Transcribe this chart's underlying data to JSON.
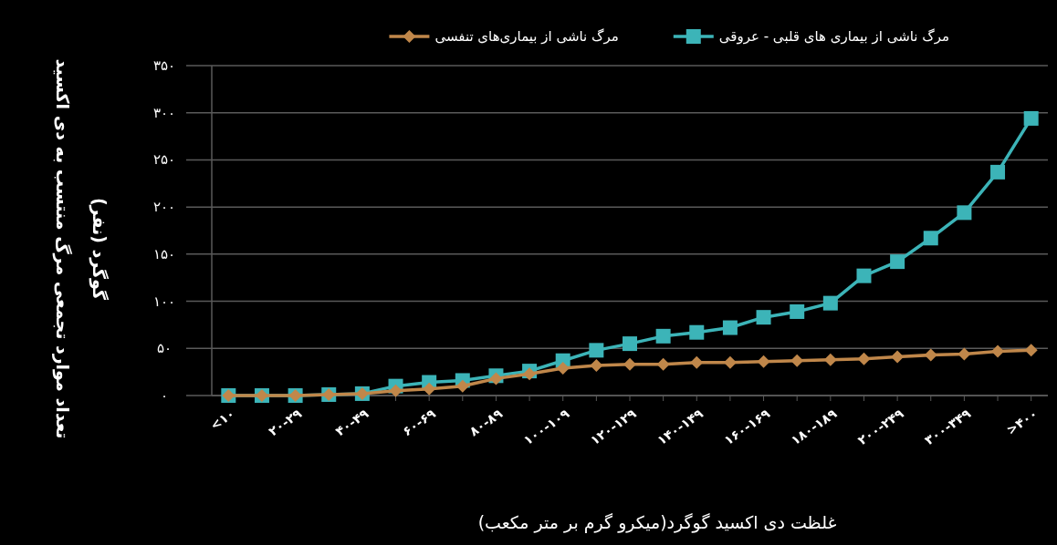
{
  "chart_data": {
    "type": "line",
    "categories": [
      "<۱۰",
      null,
      "۲۰-۲۹",
      null,
      "۴۰-۴۹",
      null,
      "۶۰-۶۹",
      null,
      "۸۰-۸۹",
      null,
      "۱۰۰-۱۰۹",
      null,
      "۱۲۰-۱۲۹",
      null,
      "۱۴۰-۱۴۹",
      null,
      "۱۶۰-۱۶۹",
      null,
      "۱۸۰-۱۸۹",
      null,
      "۲۰۰-۲۴۹",
      null,
      "۳۰۰-۳۴۹",
      null,
      ">۴۰۰"
    ],
    "series": [
      {
        "name": "مرگ ناشی از بیماری های قلبی - عروقی",
        "color": "#3cb4b8",
        "marker": "square",
        "values": [
          0,
          0,
          0,
          1,
          2,
          10,
          14,
          16,
          21,
          26,
          37,
          48,
          55,
          63,
          67,
          72,
          83,
          89,
          98,
          127,
          142,
          167,
          194,
          237,
          294
        ]
      },
      {
        "name": "مرگ ناشی از بیماری‌های تنفسی",
        "color": "#c0874a",
        "marker": "diamond",
        "values": [
          0,
          0,
          0,
          1,
          2,
          5,
          7,
          10,
          18,
          23,
          29,
          32,
          33,
          33,
          35,
          35,
          36,
          37,
          38,
          39,
          41,
          43,
          44,
          47,
          48
        ]
      }
    ],
    "ylim": [
      0,
      350
    ],
    "yticks": [
      {
        "value": 0,
        "label": "۰"
      },
      {
        "value": 50,
        "label": "۵۰"
      },
      {
        "value": 100,
        "label": "۱۰۰"
      },
      {
        "value": 150,
        "label": "۱۵۰"
      },
      {
        "value": 200,
        "label": "۲۰۰"
      },
      {
        "value": 250,
        "label": "۲۵۰"
      },
      {
        "value": 300,
        "label": "۳۰۰"
      },
      {
        "value": 350,
        "label": "۳۵۰"
      }
    ],
    "xlabel": "غلظت دی اکسید گوگرد(میکرو گرم بر متر مکعب)",
    "ylabel": "تعداد موارد تجمعی مرگ منتسب به دی اکسید گوگرد (نفر)",
    "grid": "y",
    "legend": "top"
  }
}
